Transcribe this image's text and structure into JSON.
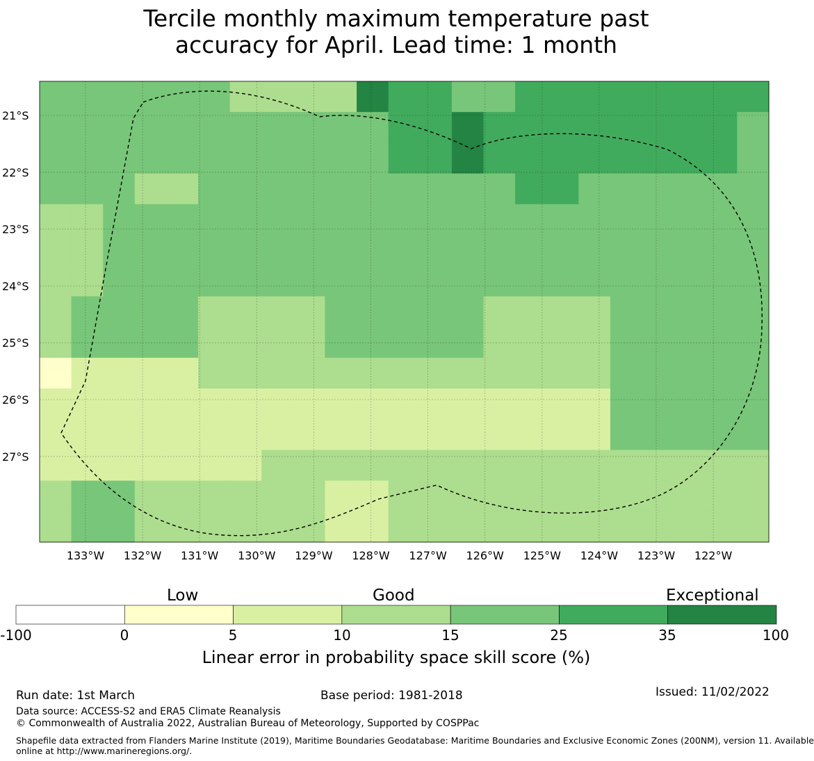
{
  "title": {
    "line1": "Tercile monthly maximum temperature past",
    "line2": "accuracy for April. Lead time: 1 month"
  },
  "map": {
    "lon_labels": [
      "133°W",
      "132°W",
      "131°W",
      "130°W",
      "129°W",
      "128°W",
      "127°W",
      "126°W",
      "125°W",
      "124°W",
      "123°W",
      "122°W"
    ],
    "lat_labels": [
      "21°S",
      "22°S",
      "23°S",
      "24°S",
      "25°S",
      "26°S",
      "27°S"
    ],
    "grid_columns": 23,
    "grid_rows": 15,
    "cell_classes": [
      "44444433336554455555555",
      "44444444444556555555554",
      "44444444444556555555554",
      "44433444444444455444444",
      "33444444444444444444444",
      "33444444444444444444444",
      "33444444444444444444444",
      "34444333344444333344444",
      "34444333344444333344444",
      "12222333333333333344444",
      "22222222222222222244444",
      "22222222222222222244444",
      "22222223333333333333333",
      "34433333322333333333333",
      "34433333322333333333333"
    ],
    "eez_outline": "dashed"
  },
  "colorbar": {
    "categories": {
      "low": "Low",
      "good": "Good",
      "exceptional": "Exceptional"
    },
    "ticks": [
      "-100",
      "0",
      "5",
      "10",
      "15",
      "25",
      "35",
      "100"
    ],
    "colors": [
      "#ffffff",
      "#ffffcc",
      "#d9f0a3",
      "#addd8e",
      "#78c679",
      "#41ab5d",
      "#238443"
    ],
    "label": "Linear error in probability space skill score (%)"
  },
  "footer": {
    "run_date": "Run date: 1st March",
    "base_period": "Base period: 1981-2018",
    "issued": "Issued: 11/02/2022",
    "data_source": "Data source: ACCESS-S2 and ERA5 Climate Reanalysis",
    "copyright": "© Commonwealth of Australia 2022, Australian Bureau of Meteorology, Supported by COSPPac",
    "shapefile_line1": "Shapefile data extracted from Flanders Marine Institute (2019), Maritime Boundaries Geodatabase: Maritime Boundaries and Exclusive Economic Zones (200NM), version 11. Available",
    "shapefile_line2": "online at http://www.marineregions.org/."
  }
}
